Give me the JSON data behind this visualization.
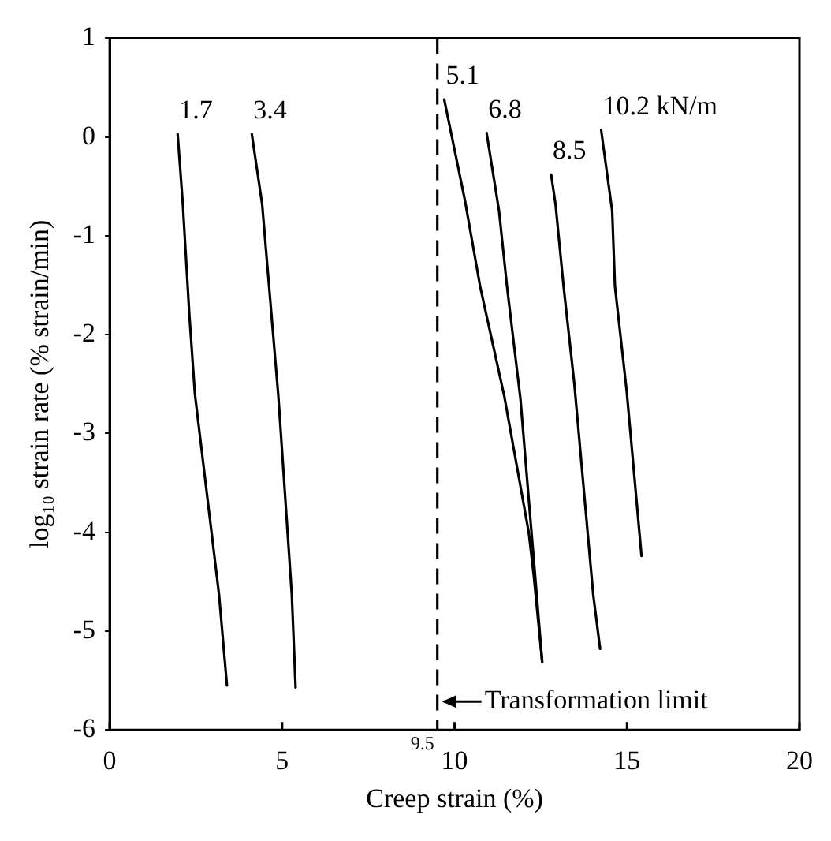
{
  "chart_data": {
    "type": "line",
    "xlabel": "Creep strain (%)",
    "ylabel": "log₁₀ strain rate (% strain/min)",
    "xlim": [
      0,
      20
    ],
    "xticks": [
      0,
      5,
      10,
      15,
      20
    ],
    "annotations": [
      {
        "text": "9.5",
        "x": 9.5,
        "y": -6
      }
    ],
    "ylim": [
      -6,
      1
    ],
    "yticks": [
      1,
      0,
      -1,
      -2,
      -3,
      -4,
      -5,
      -6
    ],
    "grid": false,
    "legend": false,
    "marker": "none",
    "line_style": "solid",
    "series": [
      {
        "name": "1.7",
        "color": "#000000",
        "x": [
          1.97,
          2.12,
          2.31,
          2.47,
          3.17,
          3.4
        ],
        "values": [
          0.03,
          -0.68,
          -1.8,
          -2.6,
          -4.63,
          -5.55
        ]
      },
      {
        "name": "3.4",
        "color": "#000000",
        "x": [
          4.12,
          4.42,
          4.89,
          5.28,
          5.39
        ],
        "values": [
          0.03,
          -0.68,
          -2.62,
          -4.63,
          -5.57
        ]
      },
      {
        "name": "5.1",
        "color": "#000000",
        "x": [
          9.7,
          10.3,
          10.74,
          11.44,
          12.15,
          12.3,
          12.54
        ],
        "values": [
          0.38,
          -0.64,
          -1.51,
          -2.62,
          -4.0,
          -4.45,
          -5.31
        ]
      },
      {
        "name": "6.8",
        "color": "#000000",
        "x": [
          10.93,
          11.29,
          11.52,
          11.91,
          12.38,
          12.54
        ],
        "values": [
          0.04,
          -0.75,
          -1.51,
          -2.65,
          -4.63,
          -5.31
        ]
      },
      {
        "name": "8.5",
        "color": "#000000",
        "x": [
          12.8,
          12.93,
          13.16,
          13.47,
          14.02,
          14.22
        ],
        "values": [
          -0.38,
          -0.69,
          -1.51,
          -2.49,
          -4.63,
          -5.18
        ]
      },
      {
        "name": "10.2 kN/m",
        "color": "#000000",
        "x": [
          14.25,
          14.57,
          14.65,
          14.99,
          15.42
        ],
        "values": [
          0.07,
          -0.75,
          -1.51,
          -2.57,
          -4.24
        ]
      }
    ],
    "ref_lines": [
      {
        "axis": "x",
        "value": 9.5,
        "label": "Transformation limit",
        "line_style": "dashed"
      }
    ]
  }
}
